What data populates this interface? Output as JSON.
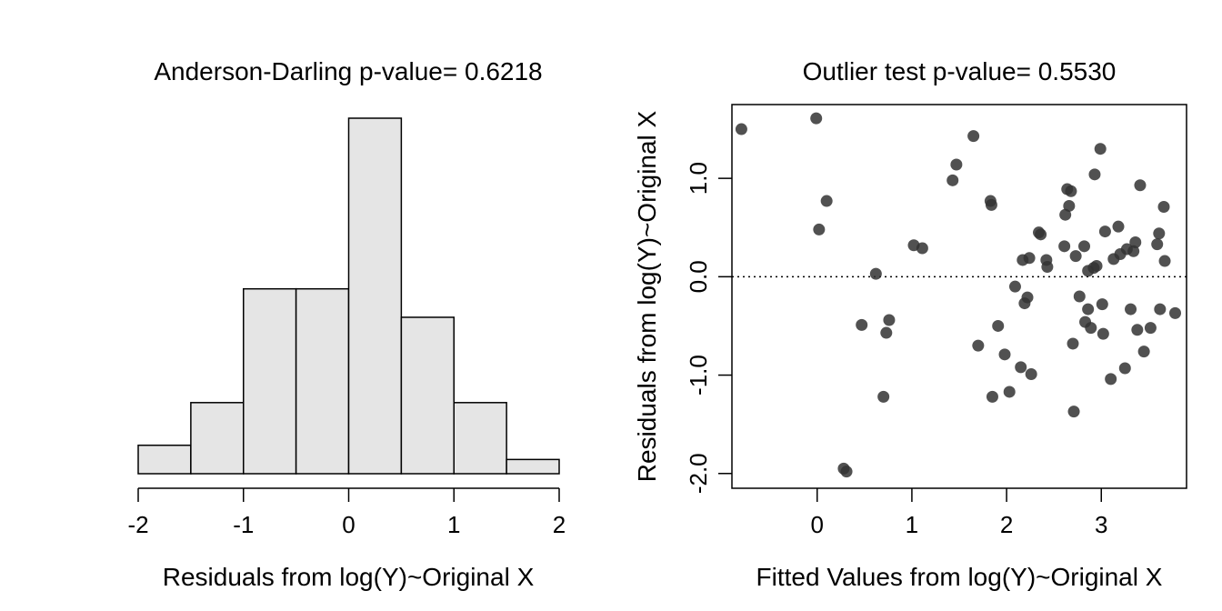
{
  "chart_data": [
    {
      "type": "bar",
      "subtype": "histogram",
      "title": "Anderson-Darling p-value= 0.6218",
      "xlabel": "Residuals from log(Y)~Original X",
      "ylabel": "",
      "xlim": [
        -2,
        2
      ],
      "x_ticks": [
        "-2",
        "-1",
        "0",
        "1",
        "2"
      ],
      "bins": [
        {
          "from": -2.0,
          "to": -1.5,
          "count": 2
        },
        {
          "from": -1.5,
          "to": -1.0,
          "count": 5
        },
        {
          "from": -1.0,
          "to": -0.5,
          "count": 13
        },
        {
          "from": -0.5,
          "to": 0.0,
          "count": 13
        },
        {
          "from": 0.0,
          "to": 0.5,
          "count": 25
        },
        {
          "from": 0.5,
          "to": 1.0,
          "count": 11
        },
        {
          "from": 1.0,
          "to": 1.5,
          "count": 5
        },
        {
          "from": 1.5,
          "to": 2.0,
          "count": 1
        }
      ],
      "colors": {
        "fill": "#e5e5e5",
        "stroke": "#000000"
      }
    },
    {
      "type": "scatter",
      "title": "Outlier test p-value= 0.5530",
      "xlabel": "Fitted Values from log(Y)~Original X",
      "ylabel": "Residuals from log(Y)~Original X",
      "xlim": [
        -0.9,
        3.9
      ],
      "ylim": [
        -2.15,
        1.75
      ],
      "x_ticks": [
        "0",
        "1",
        "2",
        "3"
      ],
      "y_ticks": [
        "-2.0",
        "-1.0",
        "0.0",
        "1.0"
      ],
      "reference_line": {
        "y": 0.0,
        "style": "dotted"
      },
      "colors": {
        "point": "#333333"
      },
      "points": [
        [
          -0.8,
          1.5
        ],
        [
          -0.01,
          1.61
        ],
        [
          0.02,
          0.48
        ],
        [
          0.1,
          0.77
        ],
        [
          0.28,
          -1.95
        ],
        [
          0.31,
          -1.98
        ],
        [
          0.47,
          -0.49
        ],
        [
          0.62,
          0.03
        ],
        [
          0.7,
          -1.22
        ],
        [
          0.73,
          -0.57
        ],
        [
          0.76,
          -0.44
        ],
        [
          1.02,
          0.32
        ],
        [
          1.11,
          0.29
        ],
        [
          1.43,
          0.98
        ],
        [
          1.47,
          1.14
        ],
        [
          1.65,
          1.43
        ],
        [
          1.7,
          -0.7
        ],
        [
          1.83,
          0.77
        ],
        [
          1.84,
          0.73
        ],
        [
          1.85,
          -1.22
        ],
        [
          1.91,
          -0.5
        ],
        [
          1.98,
          -0.79
        ],
        [
          2.03,
          -1.17
        ],
        [
          2.09,
          -0.1
        ],
        [
          2.15,
          -0.92
        ],
        [
          2.17,
          0.17
        ],
        [
          2.19,
          -0.27
        ],
        [
          2.22,
          -0.21
        ],
        [
          2.24,
          0.19
        ],
        [
          2.26,
          -0.99
        ],
        [
          2.34,
          0.45
        ],
        [
          2.36,
          0.43
        ],
        [
          2.42,
          0.17
        ],
        [
          2.43,
          0.1
        ],
        [
          2.61,
          0.31
        ],
        [
          2.62,
          0.63
        ],
        [
          2.64,
          0.89
        ],
        [
          2.66,
          0.72
        ],
        [
          2.68,
          0.87
        ],
        [
          2.7,
          -0.68
        ],
        [
          2.71,
          -1.37
        ],
        [
          2.73,
          0.21
        ],
        [
          2.77,
          -0.2
        ],
        [
          2.82,
          0.31
        ],
        [
          2.83,
          -0.46
        ],
        [
          2.86,
          0.06
        ],
        [
          2.86,
          -0.33
        ],
        [
          2.89,
          -0.52
        ],
        [
          2.92,
          0.09
        ],
        [
          2.93,
          1.04
        ],
        [
          2.95,
          0.11
        ],
        [
          2.99,
          1.3
        ],
        [
          3.01,
          -0.28
        ],
        [
          3.02,
          -0.58
        ],
        [
          3.04,
          0.46
        ],
        [
          3.1,
          -1.04
        ],
        [
          3.13,
          0.18
        ],
        [
          3.18,
          0.51
        ],
        [
          3.2,
          0.23
        ],
        [
          3.25,
          -0.93
        ],
        [
          3.27,
          0.28
        ],
        [
          3.31,
          -0.33
        ],
        [
          3.34,
          0.26
        ],
        [
          3.36,
          0.35
        ],
        [
          3.38,
          -0.54
        ],
        [
          3.41,
          0.93
        ],
        [
          3.45,
          -0.76
        ],
        [
          3.52,
          -0.52
        ],
        [
          3.59,
          0.33
        ],
        [
          3.61,
          0.44
        ],
        [
          3.62,
          -0.33
        ],
        [
          3.66,
          0.71
        ],
        [
          3.67,
          0.16
        ],
        [
          3.78,
          -0.37
        ]
      ]
    }
  ]
}
